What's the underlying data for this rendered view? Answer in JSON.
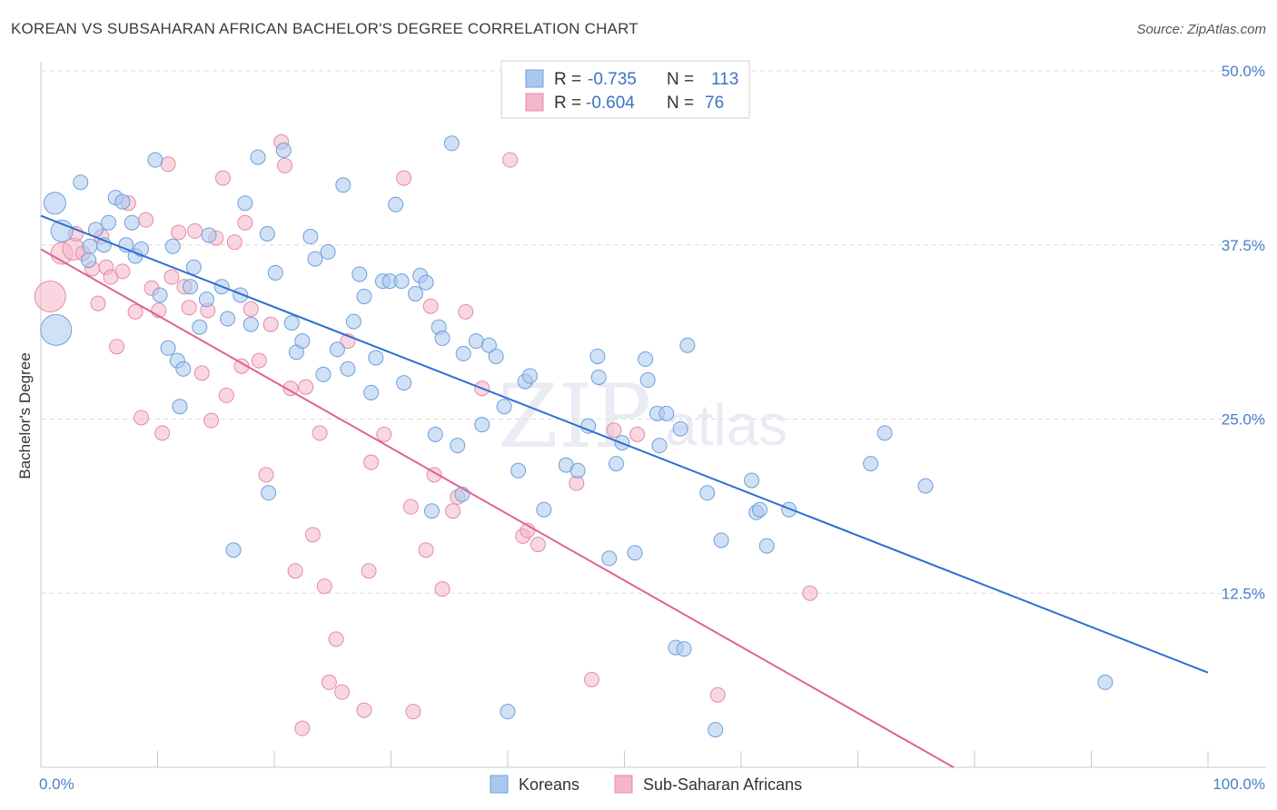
{
  "title": "KOREAN VS SUBSAHARAN AFRICAN BACHELOR'S DEGREE CORRELATION CHART",
  "source": "Source: ZipAtlas.com",
  "watermark": {
    "zip": "ZIP",
    "atlas": "atlas"
  },
  "colors": {
    "koreans_fill": "#a9c8ee",
    "koreans_stroke": "#6f9fdc",
    "koreans_line": "#2d6fd0",
    "african_fill": "#f4b6c9",
    "african_stroke": "#e58aa8",
    "african_line": "#e0628e",
    "grid": "#dcdcdc",
    "tick_text": "#4a7fc8"
  },
  "legend": {
    "rows": [
      {
        "r_label": "R =",
        "r_value": "-0.735",
        "n_label": "N =",
        "n_value": "113"
      },
      {
        "r_label": "R =",
        "r_value": "-0.604",
        "n_label": "N =",
        "n_value": "76"
      }
    ]
  },
  "bottom_legend": {
    "koreans": "Koreans",
    "african": "Sub-Saharan Africans"
  },
  "chart_data": {
    "type": "scatter",
    "title": "KOREAN VS SUBSAHARAN AFRICAN BACHELOR'S DEGREE CORRELATION CHART",
    "xlabel": "",
    "ylabel": "Bachelor's Degree",
    "xlim": [
      0,
      100
    ],
    "ylim": [
      0,
      50
    ],
    "x_tick_labels": [
      "0.0%",
      "100.0%"
    ],
    "y_ticks": [
      12.5,
      25.0,
      37.5,
      50.0
    ],
    "y_tick_labels": [
      "12.5%",
      "25.0%",
      "37.5%",
      "50.0%"
    ],
    "grid": true,
    "legend_position": "top-center",
    "series": [
      {
        "name": "Koreans",
        "r": -0.735,
        "n": 113,
        "trend": {
          "x": [
            0,
            100
          ],
          "y": [
            39.6,
            6.8
          ]
        },
        "points": [
          [
            1.3,
            31.4,
            3
          ],
          [
            1.2,
            40.5,
            2
          ],
          [
            1.8,
            38.5,
            2
          ],
          [
            3.4,
            42.0,
            1
          ],
          [
            4.2,
            37.4,
            1
          ],
          [
            4.1,
            36.4,
            1
          ],
          [
            4.7,
            38.6,
            1
          ],
          [
            5.4,
            37.5,
            1
          ],
          [
            5.8,
            39.1,
            1
          ],
          [
            6.4,
            40.9,
            1
          ],
          [
            7.0,
            40.6,
            1
          ],
          [
            7.3,
            37.5,
            1
          ],
          [
            7.8,
            39.1,
            1
          ],
          [
            8.1,
            36.7,
            1
          ],
          [
            8.6,
            37.2,
            1
          ],
          [
            9.8,
            43.6,
            1
          ],
          [
            10.2,
            33.9,
            1
          ],
          [
            10.9,
            30.1,
            1
          ],
          [
            11.3,
            37.4,
            1
          ],
          [
            11.7,
            29.2,
            1
          ],
          [
            11.9,
            25.9,
            1
          ],
          [
            12.2,
            28.6,
            1
          ],
          [
            12.8,
            34.5,
            1
          ],
          [
            13.1,
            35.9,
            1
          ],
          [
            13.6,
            31.6,
            1
          ],
          [
            14.2,
            33.6,
            1
          ],
          [
            14.4,
            38.2,
            1
          ],
          [
            15.5,
            34.5,
            1
          ],
          [
            16.0,
            32.2,
            1
          ],
          [
            16.5,
            15.6,
            1
          ],
          [
            17.1,
            33.9,
            1
          ],
          [
            17.5,
            40.5,
            1
          ],
          [
            18.0,
            31.8,
            1
          ],
          [
            18.6,
            43.8,
            1
          ],
          [
            19.4,
            38.3,
            1
          ],
          [
            20.1,
            35.5,
            1
          ],
          [
            20.8,
            44.3,
            1
          ],
          [
            21.5,
            31.9,
            1
          ],
          [
            19.5,
            19.7,
            1
          ],
          [
            21.9,
            29.8,
            1
          ],
          [
            22.4,
            30.6,
            1
          ],
          [
            23.1,
            38.1,
            1
          ],
          [
            23.5,
            36.5,
            1
          ],
          [
            24.2,
            28.2,
            1
          ],
          [
            24.6,
            37.0,
            1
          ],
          [
            25.4,
            30.0,
            1
          ],
          [
            25.9,
            41.8,
            1
          ],
          [
            26.3,
            28.6,
            1
          ],
          [
            26.8,
            32.0,
            1
          ],
          [
            27.3,
            35.4,
            1
          ],
          [
            27.7,
            33.8,
            1
          ],
          [
            28.3,
            26.9,
            1
          ],
          [
            28.7,
            29.4,
            1
          ],
          [
            29.3,
            34.9,
            1
          ],
          [
            29.9,
            34.9,
            1
          ],
          [
            30.4,
            40.4,
            1
          ],
          [
            30.9,
            34.9,
            1
          ],
          [
            31.1,
            27.6,
            1
          ],
          [
            32.1,
            34.0,
            1
          ],
          [
            32.5,
            35.3,
            1
          ],
          [
            33.0,
            34.8,
            1
          ],
          [
            33.5,
            18.4,
            1
          ],
          [
            33.8,
            23.9,
            1
          ],
          [
            34.1,
            31.6,
            1
          ],
          [
            34.4,
            30.8,
            1
          ],
          [
            35.2,
            44.8,
            1
          ],
          [
            35.7,
            23.1,
            1
          ],
          [
            36.1,
            19.6,
            1
          ],
          [
            36.2,
            29.7,
            1
          ],
          [
            37.3,
            30.6,
            1
          ],
          [
            37.8,
            24.6,
            1
          ],
          [
            38.4,
            30.3,
            1
          ],
          [
            39.0,
            29.5,
            1
          ],
          [
            39.7,
            25.9,
            1
          ],
          [
            40.0,
            4.0,
            1
          ],
          [
            40.9,
            21.3,
            1
          ],
          [
            41.5,
            27.7,
            1
          ],
          [
            41.9,
            28.1,
            1
          ],
          [
            43.1,
            18.5,
            1
          ],
          [
            45.0,
            21.7,
            1
          ],
          [
            46.0,
            21.3,
            1
          ],
          [
            46.9,
            24.5,
            1
          ],
          [
            47.7,
            29.5,
            1
          ],
          [
            47.8,
            28.0,
            1
          ],
          [
            48.7,
            15.0,
            1
          ],
          [
            49.8,
            23.3,
            1
          ],
          [
            49.3,
            21.8,
            1
          ],
          [
            50.9,
            15.4,
            1
          ],
          [
            51.8,
            29.3,
            1
          ],
          [
            52.0,
            27.8,
            1
          ],
          [
            52.8,
            25.4,
            1
          ],
          [
            53.0,
            23.1,
            1
          ],
          [
            53.6,
            25.4,
            1
          ],
          [
            54.4,
            8.6,
            1
          ],
          [
            54.8,
            24.3,
            1
          ],
          [
            55.1,
            8.5,
            1
          ],
          [
            55.4,
            30.3,
            1
          ],
          [
            57.1,
            19.7,
            1
          ],
          [
            57.8,
            2.7,
            1
          ],
          [
            58.3,
            16.3,
            1
          ],
          [
            60.9,
            20.6,
            1
          ],
          [
            61.3,
            18.3,
            1
          ],
          [
            61.6,
            18.5,
            1
          ],
          [
            62.2,
            15.9,
            1
          ],
          [
            64.1,
            18.5,
            1
          ],
          [
            71.1,
            21.8,
            1
          ],
          [
            72.3,
            24.0,
            1
          ],
          [
            75.8,
            20.2,
            1
          ],
          [
            91.2,
            6.1,
            1
          ]
        ]
      },
      {
        "name": "Sub-Saharan Africans",
        "r": -0.604,
        "n": 76,
        "trend": {
          "x": [
            0,
            78.2
          ],
          "y": [
            37.2,
            0
          ]
        },
        "points": [
          [
            0.8,
            33.8,
            3
          ],
          [
            1.8,
            36.9,
            2
          ],
          [
            2.8,
            37.2,
            2
          ],
          [
            3.0,
            38.3,
            1
          ],
          [
            3.6,
            36.9,
            1
          ],
          [
            4.4,
            35.8,
            1
          ],
          [
            4.9,
            33.3,
            1
          ],
          [
            5.2,
            38.1,
            1
          ],
          [
            5.6,
            35.9,
            1
          ],
          [
            6.0,
            35.2,
            1
          ],
          [
            6.5,
            30.2,
            1
          ],
          [
            7.0,
            35.6,
            1
          ],
          [
            7.5,
            40.5,
            1
          ],
          [
            8.1,
            32.7,
            1
          ],
          [
            8.6,
            25.1,
            1
          ],
          [
            9.0,
            39.3,
            1
          ],
          [
            9.5,
            34.4,
            1
          ],
          [
            10.1,
            32.8,
            1
          ],
          [
            10.4,
            24.0,
            1
          ],
          [
            10.9,
            43.3,
            1
          ],
          [
            11.2,
            35.2,
            1
          ],
          [
            11.8,
            38.4,
            1
          ],
          [
            12.3,
            34.5,
            1
          ],
          [
            12.7,
            33.0,
            1
          ],
          [
            13.2,
            38.5,
            1
          ],
          [
            13.8,
            28.3,
            1
          ],
          [
            14.3,
            32.8,
            1
          ],
          [
            14.6,
            24.9,
            1
          ],
          [
            15.0,
            38.0,
            1
          ],
          [
            15.6,
            42.3,
            1
          ],
          [
            15.9,
            26.7,
            1
          ],
          [
            16.6,
            37.7,
            1
          ],
          [
            17.2,
            28.8,
            1
          ],
          [
            17.5,
            39.1,
            1
          ],
          [
            18.0,
            32.9,
            1
          ],
          [
            18.7,
            29.2,
            1
          ],
          [
            19.3,
            21.0,
            1
          ],
          [
            19.7,
            31.8,
            1
          ],
          [
            20.6,
            44.9,
            1
          ],
          [
            20.9,
            43.2,
            1
          ],
          [
            21.4,
            27.2,
            1
          ],
          [
            21.8,
            14.1,
            1
          ],
          [
            22.4,
            2.8,
            1
          ],
          [
            22.7,
            27.3,
            1
          ],
          [
            23.3,
            16.7,
            1
          ],
          [
            23.9,
            24.0,
            1
          ],
          [
            24.3,
            13.0,
            1
          ],
          [
            24.7,
            6.1,
            1
          ],
          [
            25.3,
            9.2,
            1
          ],
          [
            25.8,
            5.4,
            1
          ],
          [
            26.3,
            30.6,
            1
          ],
          [
            27.7,
            4.1,
            1
          ],
          [
            28.1,
            14.1,
            1
          ],
          [
            28.3,
            21.9,
            1
          ],
          [
            29.4,
            23.9,
            1
          ],
          [
            31.1,
            42.3,
            1
          ],
          [
            31.7,
            18.7,
            1
          ],
          [
            31.9,
            4.0,
            1
          ],
          [
            33.0,
            15.6,
            1
          ],
          [
            33.4,
            33.1,
            1
          ],
          [
            33.7,
            21.0,
            1
          ],
          [
            34.4,
            12.8,
            1
          ],
          [
            35.3,
            18.4,
            1
          ],
          [
            35.7,
            19.4,
            1
          ],
          [
            36.4,
            32.7,
            1
          ],
          [
            37.8,
            27.2,
            1
          ],
          [
            40.2,
            43.6,
            1
          ],
          [
            41.3,
            16.6,
            1
          ],
          [
            41.7,
            17.0,
            1
          ],
          [
            42.6,
            16.0,
            1
          ],
          [
            45.9,
            20.4,
            1
          ],
          [
            47.2,
            6.3,
            1
          ],
          [
            49.1,
            24.2,
            1
          ],
          [
            51.1,
            23.9,
            1
          ],
          [
            58.0,
            5.2,
            1
          ],
          [
            65.9,
            12.5,
            1
          ]
        ]
      }
    ]
  }
}
